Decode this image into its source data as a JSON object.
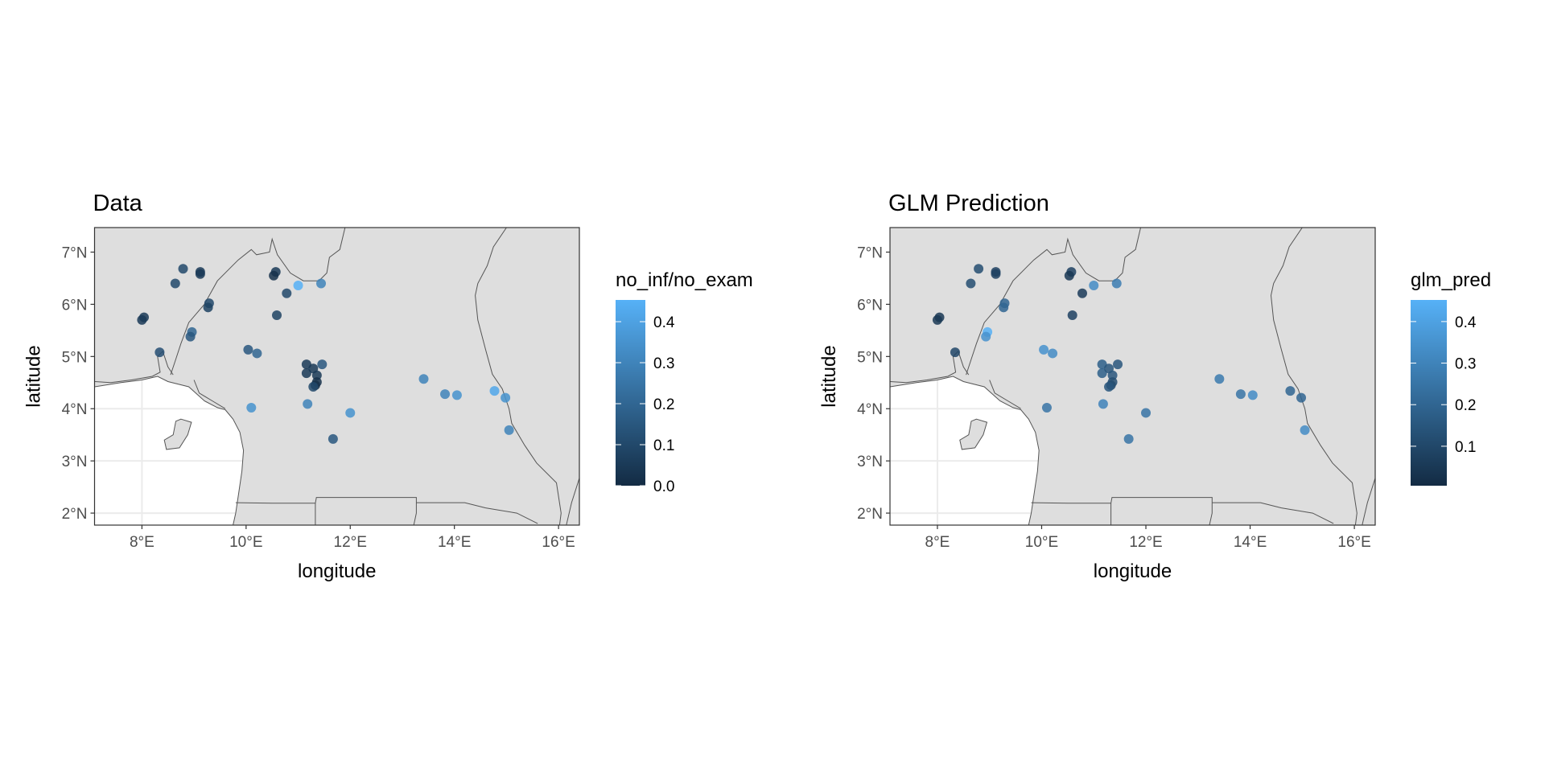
{
  "chart_data": [
    {
      "type": "scatter",
      "title": "Data",
      "xlabel": "longitude",
      "ylabel": "latitude",
      "xlim": [
        7.09,
        16.4
      ],
      "ylim": [
        1.77,
        7.47
      ],
      "xticks": [
        8,
        10,
        12,
        14,
        16
      ],
      "xtick_labels": [
        "8°E",
        "10°E",
        "12°E",
        "14°E",
        "16°E"
      ],
      "yticks": [
        2,
        3,
        4,
        5,
        6,
        7
      ],
      "ytick_labels": [
        "2°N",
        "3°N",
        "4°N",
        "5°N",
        "6°N",
        "7°N"
      ],
      "legend": {
        "title": "no_inf/no_exam",
        "position": "right",
        "limits": [
          0,
          0.453
        ],
        "breaks": [
          0.0,
          0.1,
          0.2,
          0.3,
          0.4
        ],
        "labels": [
          "0.0",
          "0.1",
          "0.2",
          "0.3",
          "0.4"
        ]
      },
      "color_low": "#132B43",
      "color_high": "#56B1F7",
      "points": [
        [
          8.0,
          5.7,
          0.05
        ],
        [
          8.04,
          5.75,
          0.05
        ],
        [
          8.34,
          5.08,
          0.12
        ],
        [
          8.64,
          6.4,
          0.1
        ],
        [
          8.79,
          6.68,
          0.1
        ],
        [
          9.12,
          6.62,
          0.05
        ],
        [
          9.12,
          6.58,
          0.05
        ],
        [
          9.29,
          6.02,
          0.1
        ],
        [
          9.27,
          5.94,
          0.08
        ],
        [
          8.96,
          5.47,
          0.2
        ],
        [
          8.93,
          5.38,
          0.15
        ],
        [
          10.57,
          6.62,
          0.05
        ],
        [
          10.53,
          6.55,
          0.02
        ],
        [
          10.59,
          5.79,
          0.08
        ],
        [
          10.78,
          6.21,
          0.1
        ],
        [
          11.0,
          6.36,
          0.45
        ],
        [
          11.44,
          6.4,
          0.3
        ],
        [
          10.04,
          5.13,
          0.15
        ],
        [
          10.21,
          5.06,
          0.2
        ],
        [
          11.16,
          4.85,
          0.05
        ],
        [
          11.16,
          4.68,
          0.05
        ],
        [
          11.29,
          4.77,
          0.05
        ],
        [
          11.36,
          4.64,
          0.05
        ],
        [
          11.33,
          4.45,
          0.0
        ],
        [
          11.36,
          4.51,
          0.02
        ],
        [
          11.29,
          4.42,
          0.1
        ],
        [
          11.46,
          4.85,
          0.15
        ],
        [
          11.18,
          4.09,
          0.3
        ],
        [
          10.1,
          4.02,
          0.35
        ],
        [
          12.0,
          3.92,
          0.35
        ],
        [
          11.67,
          3.42,
          0.15
        ],
        [
          13.41,
          4.57,
          0.3
        ],
        [
          13.82,
          4.28,
          0.3
        ],
        [
          14.05,
          4.26,
          0.35
        ],
        [
          14.77,
          4.34,
          0.42
        ],
        [
          14.98,
          4.21,
          0.35
        ],
        [
          15.05,
          3.59,
          0.3
        ]
      ]
    },
    {
      "type": "scatter",
      "title": "GLM Prediction",
      "xlabel": "longitude",
      "ylabel": "latitude",
      "xlim": [
        7.09,
        16.4
      ],
      "ylim": [
        1.77,
        7.47
      ],
      "xticks": [
        8,
        10,
        12,
        14,
        16
      ],
      "xtick_labels": [
        "8°E",
        "10°E",
        "12°E",
        "14°E",
        "16°E"
      ],
      "yticks": [
        2,
        3,
        4,
        5,
        6,
        7
      ],
      "ytick_labels": [
        "2°N",
        "3°N",
        "4°N",
        "5°N",
        "6°N",
        "7°N"
      ],
      "legend": {
        "title": "glm_pred",
        "position": "right",
        "limits": [
          0.005,
          0.452
        ],
        "breaks": [
          0.1,
          0.2,
          0.3,
          0.4
        ],
        "labels": [
          "0.1",
          "0.2",
          "0.3",
          "0.4"
        ]
      },
      "color_low": "#132B43",
      "color_high": "#56B1F7",
      "points": [
        [
          8.0,
          5.7,
          0.05
        ],
        [
          8.04,
          5.75,
          0.05
        ],
        [
          8.34,
          5.08,
          0.1
        ],
        [
          8.64,
          6.4,
          0.12
        ],
        [
          8.79,
          6.68,
          0.12
        ],
        [
          9.12,
          6.62,
          0.08
        ],
        [
          9.12,
          6.58,
          0.08
        ],
        [
          9.29,
          6.02,
          0.2
        ],
        [
          9.27,
          5.94,
          0.2
        ],
        [
          8.96,
          5.47,
          0.45
        ],
        [
          8.93,
          5.38,
          0.35
        ],
        [
          10.57,
          6.62,
          0.08
        ],
        [
          10.53,
          6.55,
          0.05
        ],
        [
          10.59,
          5.79,
          0.08
        ],
        [
          10.78,
          6.21,
          0.06
        ],
        [
          11.0,
          6.36,
          0.33
        ],
        [
          11.44,
          6.4,
          0.28
        ],
        [
          10.04,
          5.13,
          0.35
        ],
        [
          10.21,
          5.06,
          0.33
        ],
        [
          11.16,
          4.85,
          0.18
        ],
        [
          11.16,
          4.68,
          0.18
        ],
        [
          11.29,
          4.77,
          0.15
        ],
        [
          11.36,
          4.64,
          0.15
        ],
        [
          11.33,
          4.45,
          0.1
        ],
        [
          11.36,
          4.51,
          0.12
        ],
        [
          11.29,
          4.42,
          0.15
        ],
        [
          11.46,
          4.85,
          0.15
        ],
        [
          11.18,
          4.09,
          0.3
        ],
        [
          10.1,
          4.02,
          0.25
        ],
        [
          12.0,
          3.92,
          0.25
        ],
        [
          11.67,
          3.42,
          0.25
        ],
        [
          13.41,
          4.57,
          0.27
        ],
        [
          13.82,
          4.28,
          0.25
        ],
        [
          14.05,
          4.26,
          0.33
        ],
        [
          14.77,
          4.34,
          0.2
        ],
        [
          14.98,
          4.21,
          0.2
        ],
        [
          15.05,
          3.59,
          0.33
        ]
      ]
    }
  ]
}
